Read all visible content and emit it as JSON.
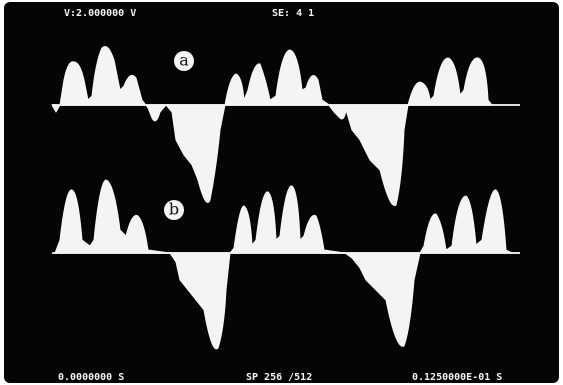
{
  "header": {
    "voltage": "V:2.000000 V",
    "setting": "SE: 4 1"
  },
  "traces": [
    {
      "label": "a"
    },
    {
      "label": "b"
    }
  ],
  "footer": {
    "start_time": "0.0000000 S",
    "samples": "SP 256 /512",
    "end_time": "0.1250000E-01 S"
  }
}
